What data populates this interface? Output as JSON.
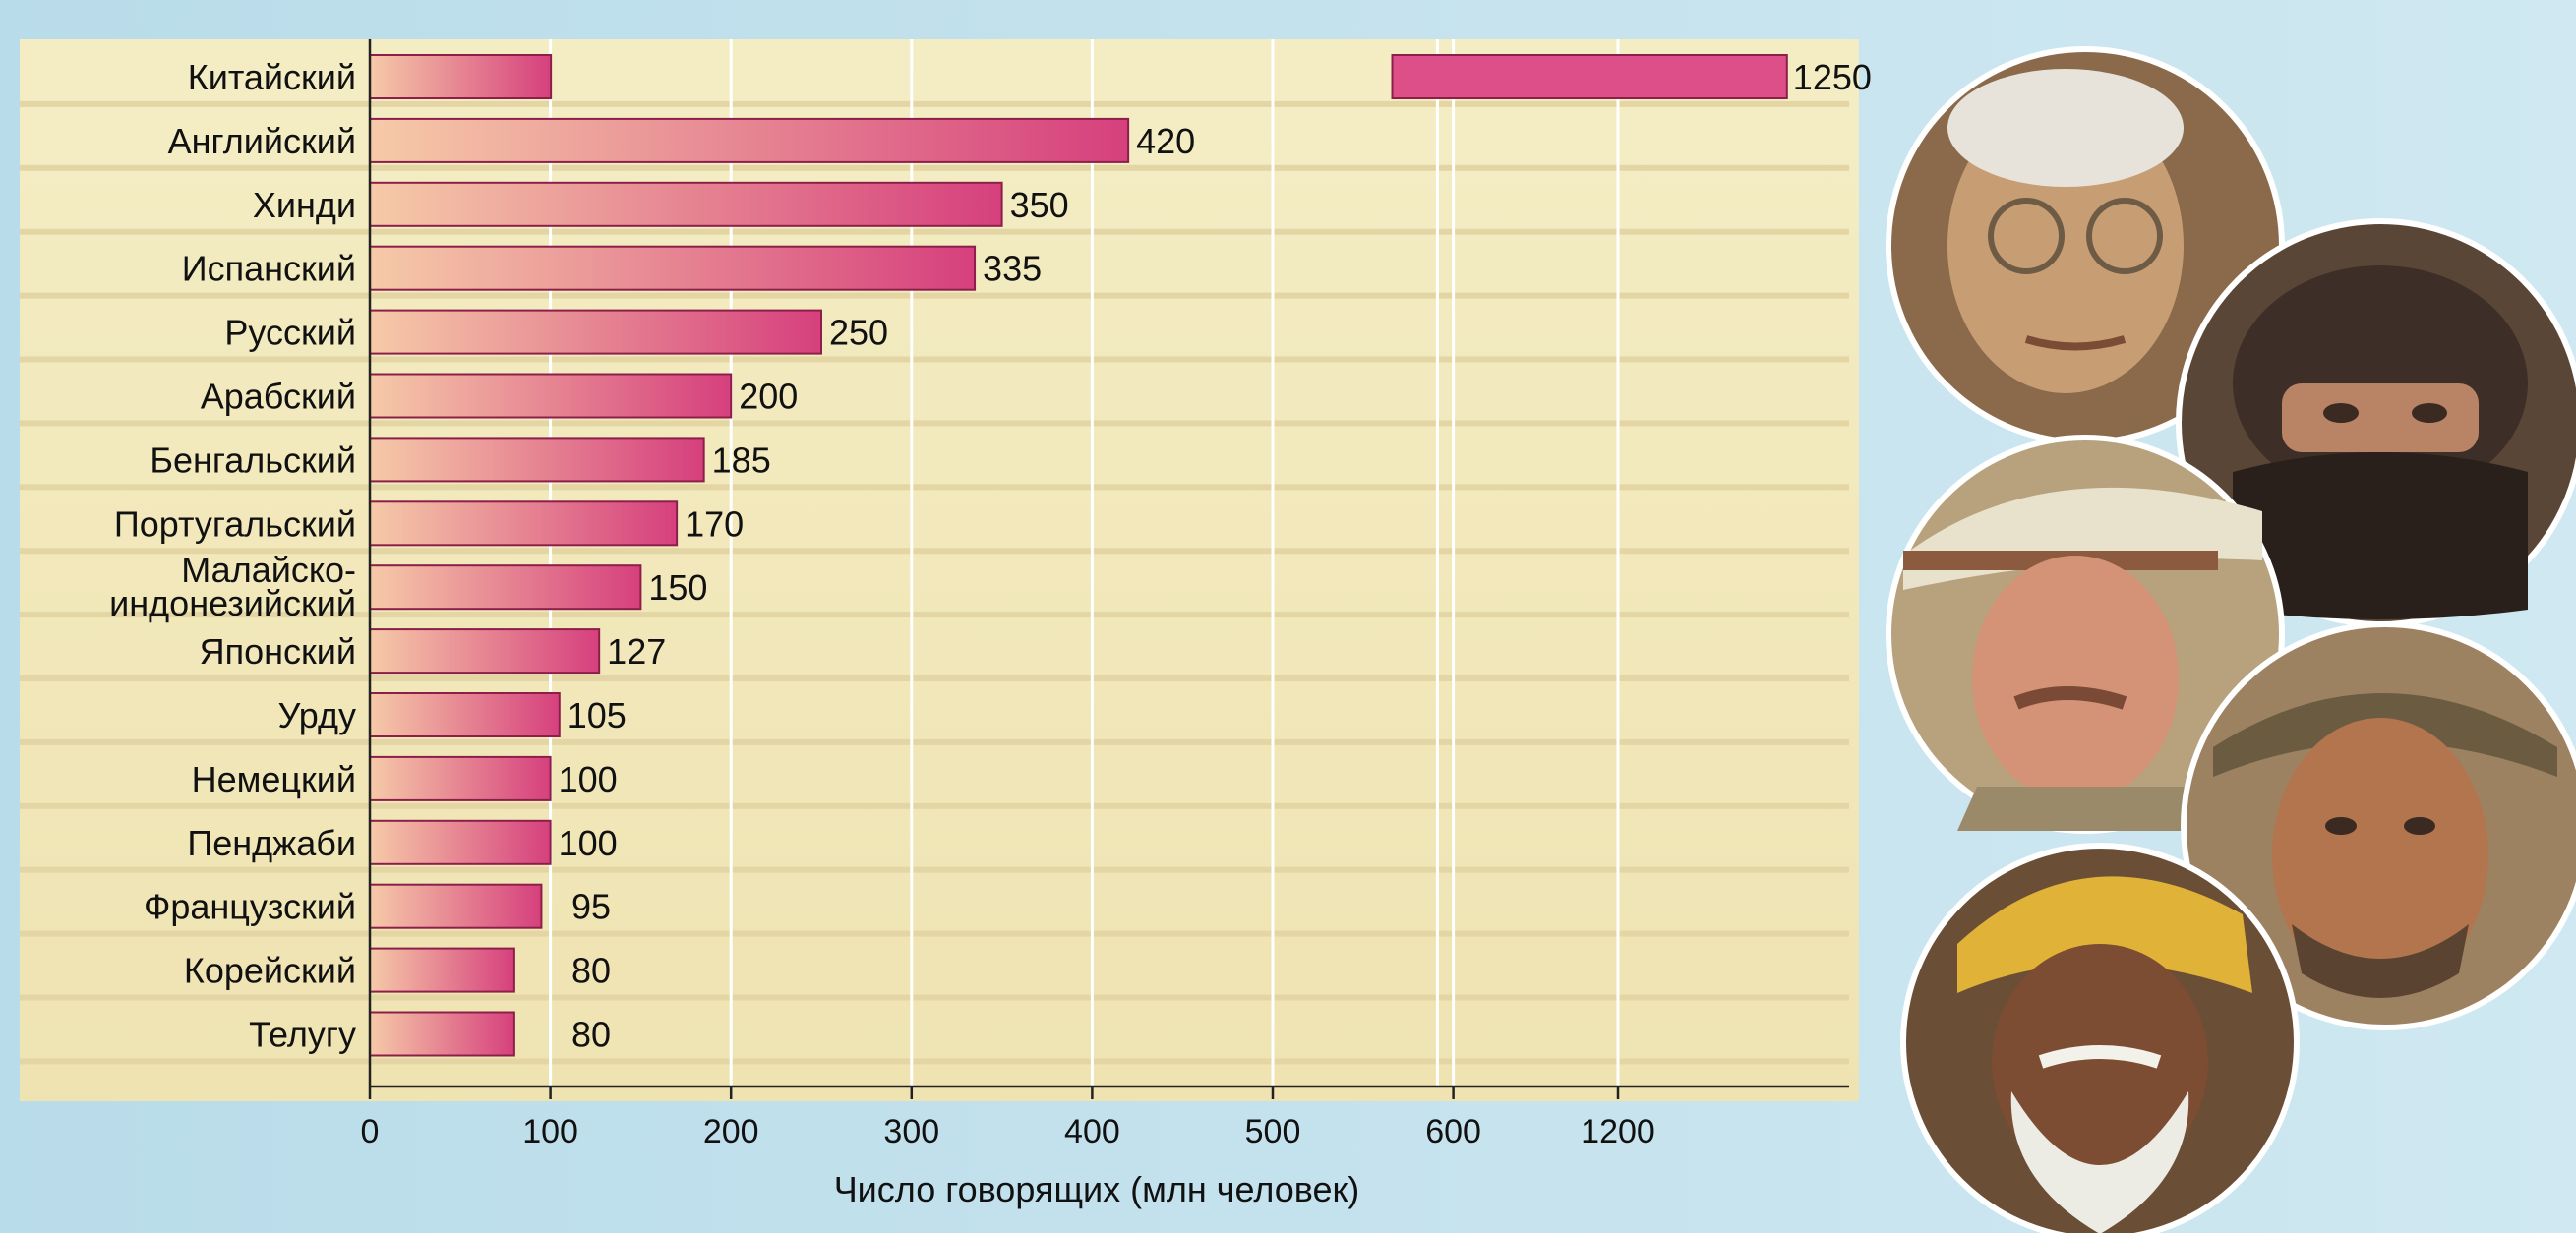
{
  "chart_data": {
    "type": "bar",
    "orientation": "horizontal",
    "categories": [
      "Китайский",
      "Английский",
      "Хинди",
      "Испанский",
      "Русский",
      "Арабский",
      "Бенгальский",
      "Португальский",
      "Малайско-\nиндонезийский",
      "Японский",
      "Урду",
      "Немецкий",
      "Пенджаби",
      "Французский",
      "Корейский",
      "Телугу"
    ],
    "values": [
      1250,
      420,
      350,
      335,
      250,
      200,
      185,
      170,
      150,
      127,
      105,
      100,
      100,
      95,
      80,
      80
    ],
    "value_labels": [
      "1250",
      "420",
      "350",
      "335",
      "250",
      "200",
      "185",
      "170",
      "150",
      "127",
      "105",
      "100",
      "100",
      "95",
      "80",
      "80"
    ],
    "xlabel": "Число говорящих (млн человек)",
    "ylabel": "",
    "title": "",
    "x_ticks": [
      "0",
      "100",
      "200",
      "300",
      "400",
      "500",
      "600",
      "1200"
    ],
    "x_tick_values": [
      0,
      100,
      200,
      300,
      400,
      500,
      600,
      1200
    ],
    "axis_break": {
      "from": 600,
      "to": 1200
    },
    "grid": true,
    "colors": {
      "bar_start": "#f5c6a6",
      "bar_end": "#d8427f",
      "bar_stroke": "#8c1f4a",
      "plot_bg": "#f3ecc0",
      "stripe": "#e6d6a2",
      "page_bg": "#c3e3ef"
    }
  },
  "photos": [
    {
      "name": "elderly-man-glasses-photo"
    },
    {
      "name": "veiled-man-photo"
    },
    {
      "name": "man-in-cap-photo"
    },
    {
      "name": "man-in-headwrap-photo"
    },
    {
      "name": "man-in-turban-photo"
    }
  ]
}
